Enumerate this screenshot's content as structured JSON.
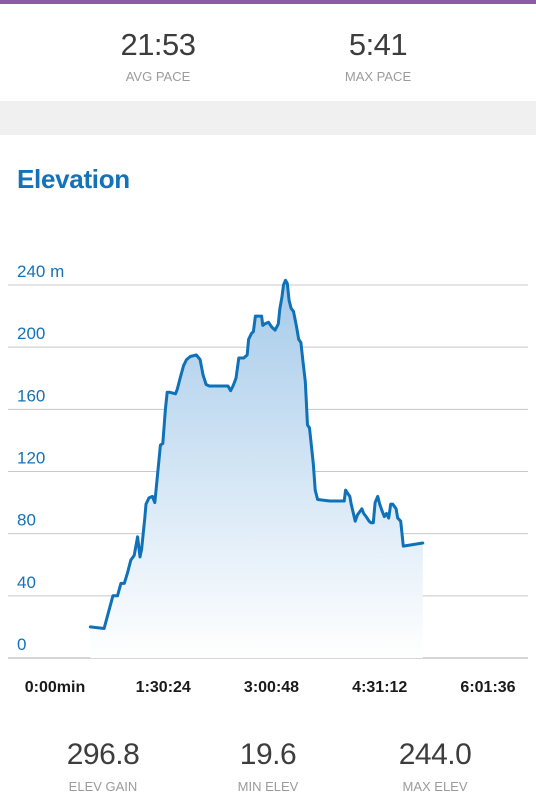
{
  "colors": {
    "accent": "#8a5aa5",
    "line": "#0f71b8",
    "title": "#1372b8",
    "fill_top": "#a6cbea",
    "fill_bottom": "#ffffff",
    "grid": "#c8c8c8"
  },
  "top_stats": [
    {
      "value": "21:53",
      "label": "AVG PACE"
    },
    {
      "value": "5:41",
      "label": "MAX PACE"
    }
  ],
  "section": {
    "title": "Elevation"
  },
  "bottom_stats": [
    {
      "value": "296.8",
      "label": "ELEV GAIN"
    },
    {
      "value": "19.6",
      "label": "MIN ELEV"
    },
    {
      "value": "244.0",
      "label": "MAX ELEV"
    }
  ],
  "chart_data": {
    "type": "area",
    "xlabel": "",
    "ylabel": "",
    "ylim": [
      0,
      240
    ],
    "xlim_seconds": [
      0,
      23500
    ],
    "y_ticks": [
      {
        "value": 240,
        "label": "240 m"
      },
      {
        "value": 200,
        "label": "200"
      },
      {
        "value": 160,
        "label": "160"
      },
      {
        "value": 120,
        "label": "120"
      },
      {
        "value": 80,
        "label": "80"
      },
      {
        "value": 40,
        "label": "40"
      },
      {
        "value": 0,
        "label": "0"
      }
    ],
    "x_ticks": [
      {
        "value": 0,
        "label": "0:00min"
      },
      {
        "value": 5424,
        "label": "1:30:24"
      },
      {
        "value": 10848,
        "label": "3:00:48"
      },
      {
        "value": 16272,
        "label": "4:31:12"
      },
      {
        "value": 21696,
        "label": "6:01:36"
      }
    ],
    "grid": true,
    "legend": "none",
    "points": [
      [
        1770,
        20
      ],
      [
        2460,
        19
      ],
      [
        2900,
        40
      ],
      [
        3130,
        40
      ],
      [
        3300,
        48
      ],
      [
        3470,
        48
      ],
      [
        3640,
        55
      ],
      [
        3800,
        63
      ],
      [
        3970,
        66
      ],
      [
        4140,
        78
      ],
      [
        4260,
        65
      ],
      [
        4340,
        70
      ],
      [
        4500,
        90
      ],
      [
        4560,
        99
      ],
      [
        4710,
        103
      ],
      [
        4880,
        104
      ],
      [
        5000,
        100
      ],
      [
        5130,
        117
      ],
      [
        5280,
        137
      ],
      [
        5400,
        138
      ],
      [
        5530,
        160
      ],
      [
        5620,
        171
      ],
      [
        5730,
        171
      ],
      [
        6040,
        170
      ],
      [
        6130,
        173
      ],
      [
        6270,
        180
      ],
      [
        6440,
        188
      ],
      [
        6590,
        192
      ],
      [
        6780,
        194
      ],
      [
        7080,
        195
      ],
      [
        7270,
        192
      ],
      [
        7420,
        182
      ],
      [
        7570,
        176
      ],
      [
        7730,
        175
      ],
      [
        8360,
        175
      ],
      [
        8670,
        175
      ],
      [
        8800,
        172
      ],
      [
        8920,
        175
      ],
      [
        9070,
        180
      ],
      [
        9210,
        193
      ],
      [
        9460,
        193
      ],
      [
        9630,
        195
      ],
      [
        9700,
        205
      ],
      [
        9850,
        209
      ],
      [
        9940,
        210
      ],
      [
        10040,
        220
      ],
      [
        10140,
        220
      ],
      [
        10350,
        220
      ],
      [
        10410,
        214
      ],
      [
        10510,
        215
      ],
      [
        10700,
        216
      ],
      [
        10860,
        213
      ],
      [
        11030,
        211
      ],
      [
        11190,
        215
      ],
      [
        11270,
        225
      ],
      [
        11370,
        232
      ],
      [
        11450,
        240
      ],
      [
        11550,
        243
      ],
      [
        11640,
        241
      ],
      [
        11730,
        230
      ],
      [
        11830,
        225
      ],
      [
        11950,
        223
      ],
      [
        12090,
        214
      ],
      [
        12210,
        205
      ],
      [
        12320,
        203
      ],
      [
        12430,
        190
      ],
      [
        12540,
        178
      ],
      [
        12650,
        150
      ],
      [
        12750,
        148
      ],
      [
        12940,
        125
      ],
      [
        13040,
        108
      ],
      [
        13160,
        102
      ],
      [
        13770,
        101
      ],
      [
        14490,
        101
      ],
      [
        14560,
        108
      ],
      [
        14660,
        106
      ],
      [
        14770,
        104
      ],
      [
        14840,
        99
      ],
      [
        15040,
        88
      ],
      [
        15150,
        92
      ],
      [
        15260,
        94
      ],
      [
        15380,
        96
      ],
      [
        15470,
        93
      ],
      [
        15590,
        91
      ],
      [
        15740,
        88
      ],
      [
        15840,
        87
      ],
      [
        15950,
        87
      ],
      [
        16040,
        100
      ],
      [
        16170,
        104
      ],
      [
        16270,
        99
      ],
      [
        16380,
        95
      ],
      [
        16500,
        91
      ],
      [
        16610,
        93
      ],
      [
        16720,
        90
      ],
      [
        16820,
        99
      ],
      [
        16920,
        99
      ],
      [
        17090,
        96
      ],
      [
        17170,
        90
      ],
      [
        17320,
        88
      ],
      [
        17450,
        72
      ],
      [
        18430,
        74
      ]
    ]
  }
}
